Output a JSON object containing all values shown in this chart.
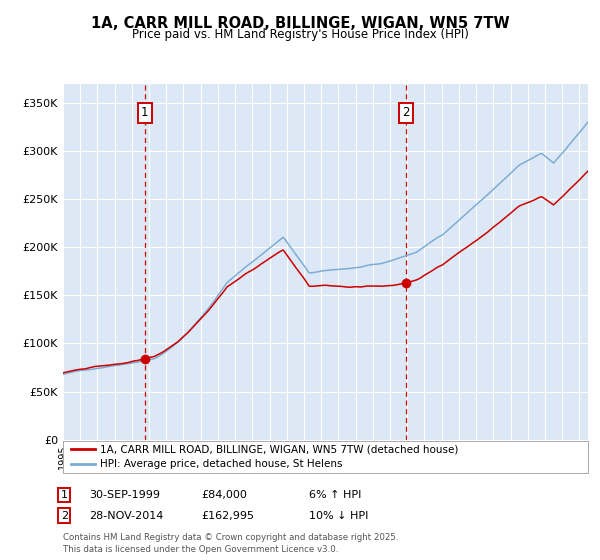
{
  "title": "1A, CARR MILL ROAD, BILLINGE, WIGAN, WN5 7TW",
  "subtitle": "Price paid vs. HM Land Registry's House Price Index (HPI)",
  "legend_line1": "1A, CARR MILL ROAD, BILLINGE, WIGAN, WN5 7TW (detached house)",
  "legend_line2": "HPI: Average price, detached house, St Helens",
  "sale1_date": "30-SEP-1999",
  "sale1_price": 84000,
  "sale1_pct": "6% ↑ HPI",
  "sale2_date": "28-NOV-2014",
  "sale2_price": 162995,
  "sale2_pct": "10% ↓ HPI",
  "footnote": "Contains HM Land Registry data © Crown copyright and database right 2025.\nThis data is licensed under the Open Government Licence v3.0.",
  "hpi_color": "#7dadd4",
  "price_color": "#cc0000",
  "bg_color": "#dce8f5",
  "sale1_x": 1999.75,
  "sale2_x": 2014.92,
  "ylim": [
    0,
    370000
  ],
  "xlim_start": 1995.0,
  "xlim_end": 2025.5
}
